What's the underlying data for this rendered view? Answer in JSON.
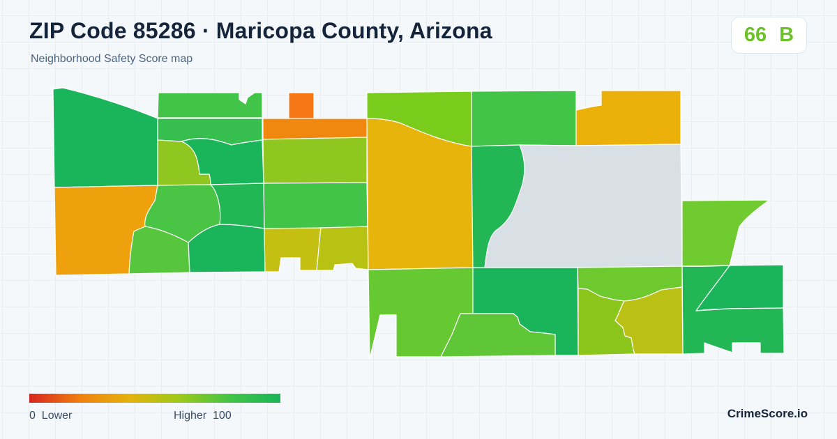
{
  "header": {
    "title": "ZIP Code 85286 · Maricopa County, Arizona",
    "subtitle": "Neighborhood Safety Score map"
  },
  "score": {
    "value": "66",
    "grade": "B",
    "color": "#6cc329"
  },
  "legend": {
    "min_label": "0  Lower",
    "max_label": "Higher  100",
    "colors": [
      "#d7261e",
      "#f07f10",
      "#e3b30c",
      "#9cc81a",
      "#42c448",
      "#1bb458"
    ]
  },
  "brand": "CrimeScore.io",
  "colors": {
    "no_data": "#d8dfe5",
    "region_stroke": "#ffffff"
  }
}
